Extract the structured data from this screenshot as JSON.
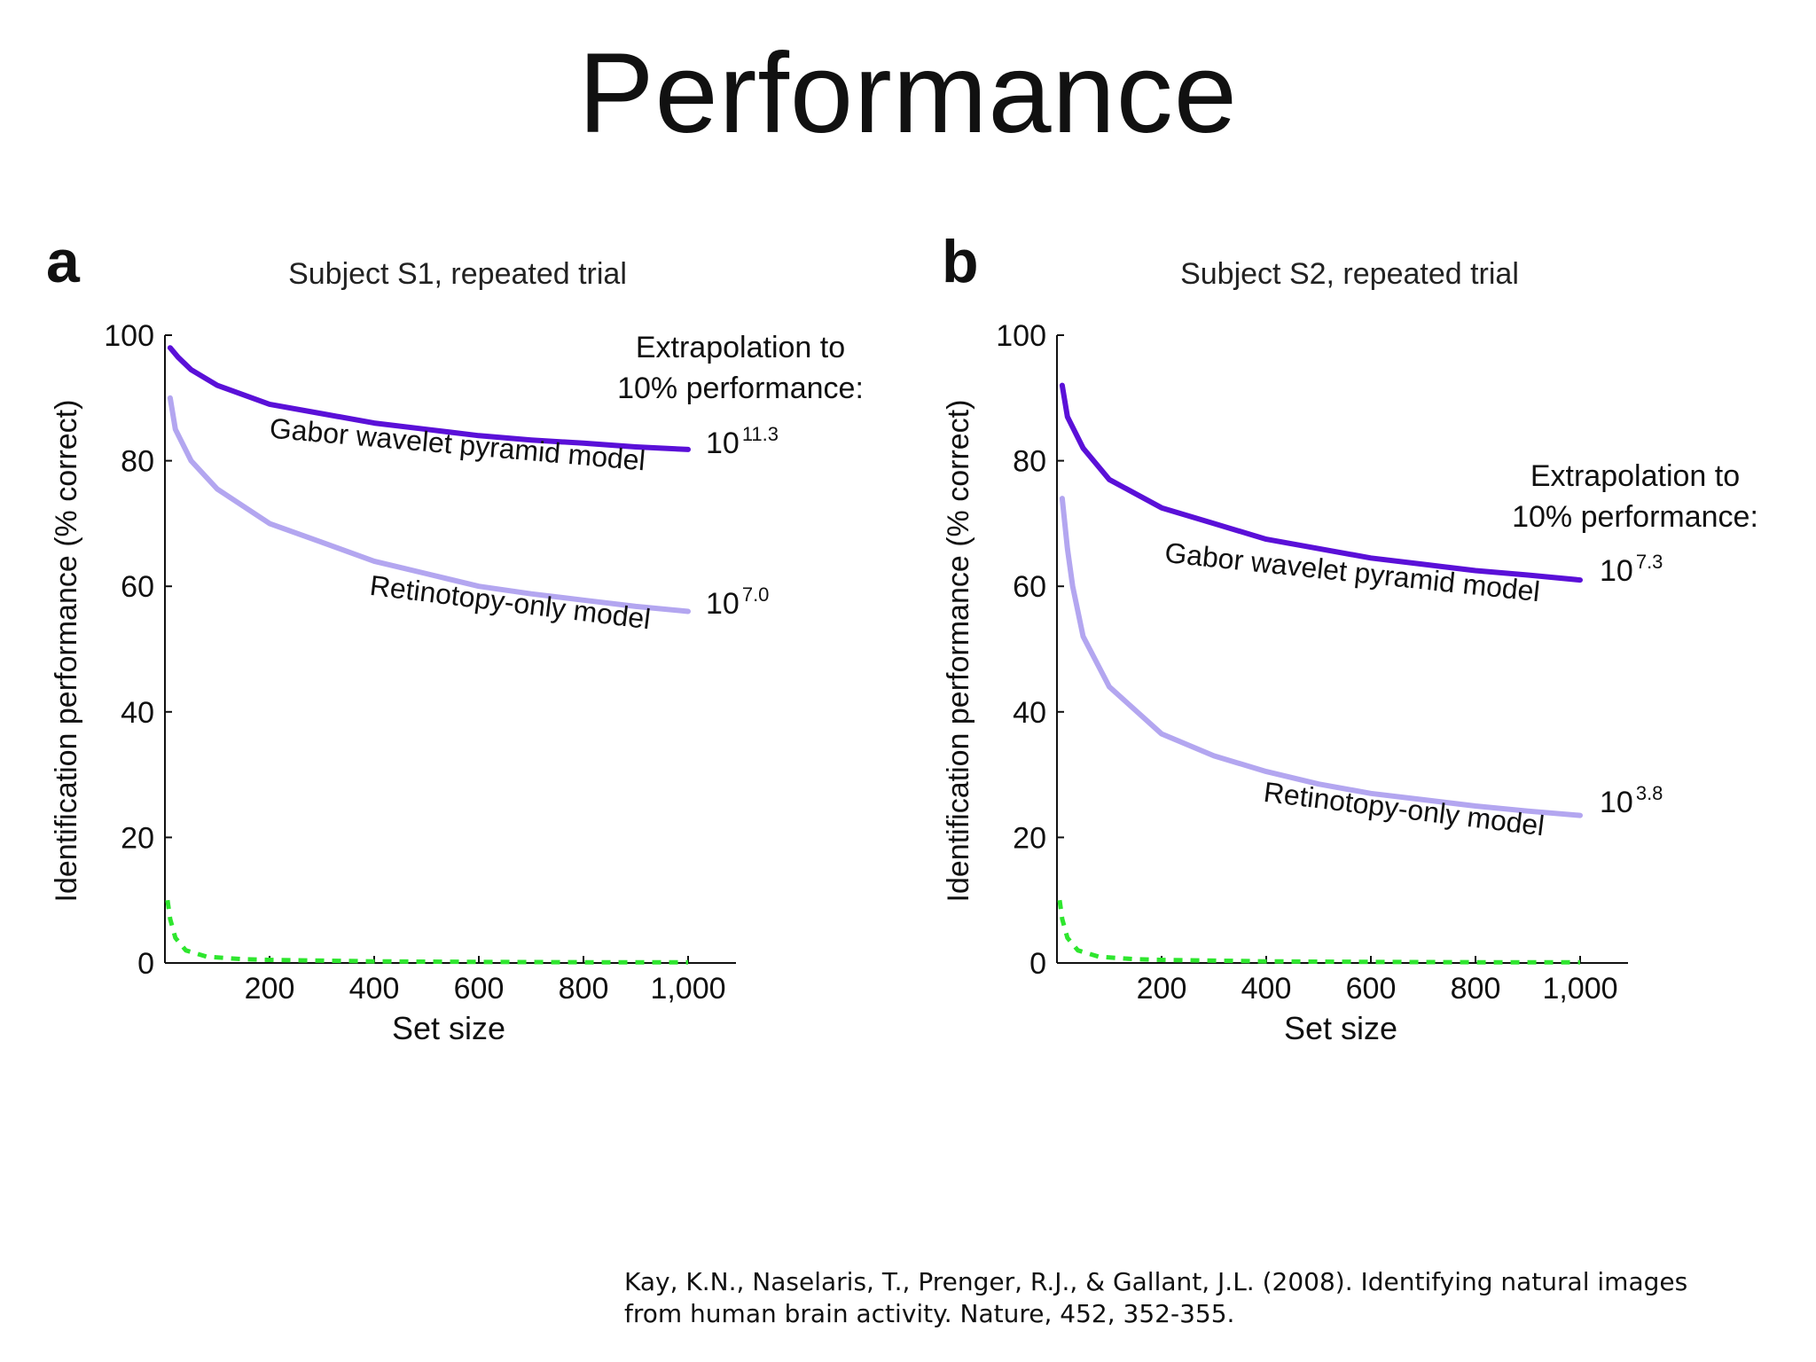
{
  "slide": {
    "title": "Performance"
  },
  "citation": {
    "line1": "Kay, K.N., Naselaris, T., Prenger, R.J., & Gallant, J.L. (2008). Identifying natural images",
    "line2": "from human brain activity. Nature, 452, 352-355."
  },
  "colors": {
    "gabor": "#5a10d8",
    "retinotopy": "#b3a6f0",
    "chance": "#2ee62e",
    "axis": "#111111"
  },
  "chart_data": [
    {
      "type": "line",
      "panel_letter": "a",
      "title": "Subject S1, repeated trial",
      "xlabel": "Set size",
      "ylabel": "Identification performance (% correct)",
      "xlim": [
        0,
        1100
      ],
      "ylim": [
        0,
        100
      ],
      "xticks": [
        200,
        400,
        600,
        800,
        1000
      ],
      "xtick_labels": [
        "200",
        "400",
        "600",
        "800",
        "1,000"
      ],
      "yticks": [
        0,
        20,
        40,
        60,
        80,
        100
      ],
      "ytick_labels": [
        "0",
        "20",
        "40",
        "60",
        "80",
        "100"
      ],
      "extrapolation_label": [
        "Extrapolation to",
        "10% performance:"
      ],
      "series": [
        {
          "name": "Gabor wavelet pyramid model",
          "key": "gabor",
          "x": [
            10,
            25,
            50,
            100,
            200,
            300,
            400,
            500,
            600,
            700,
            800,
            900,
            1000
          ],
          "y": [
            98,
            96.5,
            94.5,
            92,
            89,
            87.5,
            86,
            85,
            84,
            83.3,
            82.8,
            82.2,
            81.8
          ],
          "extrapolation": {
            "base": "10",
            "exp": "11.3"
          }
        },
        {
          "name": "Retinotopy-only model",
          "key": "retinotopy",
          "x": [
            10,
            20,
            50,
            100,
            200,
            300,
            400,
            500,
            600,
            700,
            800,
            900,
            1000
          ],
          "y": [
            90,
            85,
            80,
            75.5,
            70,
            67,
            64,
            62,
            60,
            58.8,
            57.8,
            56.8,
            56
          ],
          "extrapolation": {
            "base": "10",
            "exp": "7.0"
          }
        },
        {
          "key": "chance",
          "x": [
            5,
            10,
            20,
            40,
            80,
            150,
            200,
            400,
            600,
            800,
            1000
          ],
          "y": [
            10,
            7,
            4,
            2,
            1,
            0.6,
            0.5,
            0.25,
            0.17,
            0.12,
            0.1
          ]
        }
      ]
    },
    {
      "type": "line",
      "panel_letter": "b",
      "title": "Subject S2, repeated trial",
      "xlabel": "Set size",
      "ylabel": "Identification performance (% correct)",
      "xlim": [
        0,
        1100
      ],
      "ylim": [
        0,
        100
      ],
      "xticks": [
        200,
        400,
        600,
        800,
        1000
      ],
      "xtick_labels": [
        "200",
        "400",
        "600",
        "800",
        "1,000"
      ],
      "yticks": [
        0,
        20,
        40,
        60,
        80,
        100
      ],
      "ytick_labels": [
        "0",
        "20",
        "40",
        "60",
        "80",
        "100"
      ],
      "extrapolation_label": [
        "Extrapolation to",
        "10% performance:"
      ],
      "series": [
        {
          "name": "Gabor wavelet pyramid model",
          "key": "gabor",
          "x": [
            10,
            20,
            50,
            100,
            200,
            300,
            400,
            500,
            600,
            700,
            800,
            900,
            1000
          ],
          "y": [
            92,
            87,
            82,
            77,
            72.5,
            70,
            67.5,
            66,
            64.5,
            63.5,
            62.5,
            61.8,
            61
          ],
          "extrapolation": {
            "base": "10",
            "exp": "7.3"
          }
        },
        {
          "name": "Retinotopy-only model",
          "key": "retinotopy",
          "x": [
            10,
            20,
            30,
            50,
            100,
            200,
            300,
            400,
            500,
            600,
            700,
            800,
            900,
            1000
          ],
          "y": [
            74,
            66,
            60,
            52,
            44,
            36.5,
            33,
            30.5,
            28.5,
            27,
            26,
            25,
            24.2,
            23.5
          ],
          "extrapolation": {
            "base": "10",
            "exp": "3.8"
          }
        },
        {
          "key": "chance",
          "x": [
            5,
            10,
            20,
            40,
            80,
            150,
            200,
            400,
            600,
            800,
            1000
          ],
          "y": [
            10,
            7,
            4,
            2,
            1,
            0.6,
            0.5,
            0.25,
            0.17,
            0.12,
            0.1
          ]
        }
      ]
    }
  ]
}
